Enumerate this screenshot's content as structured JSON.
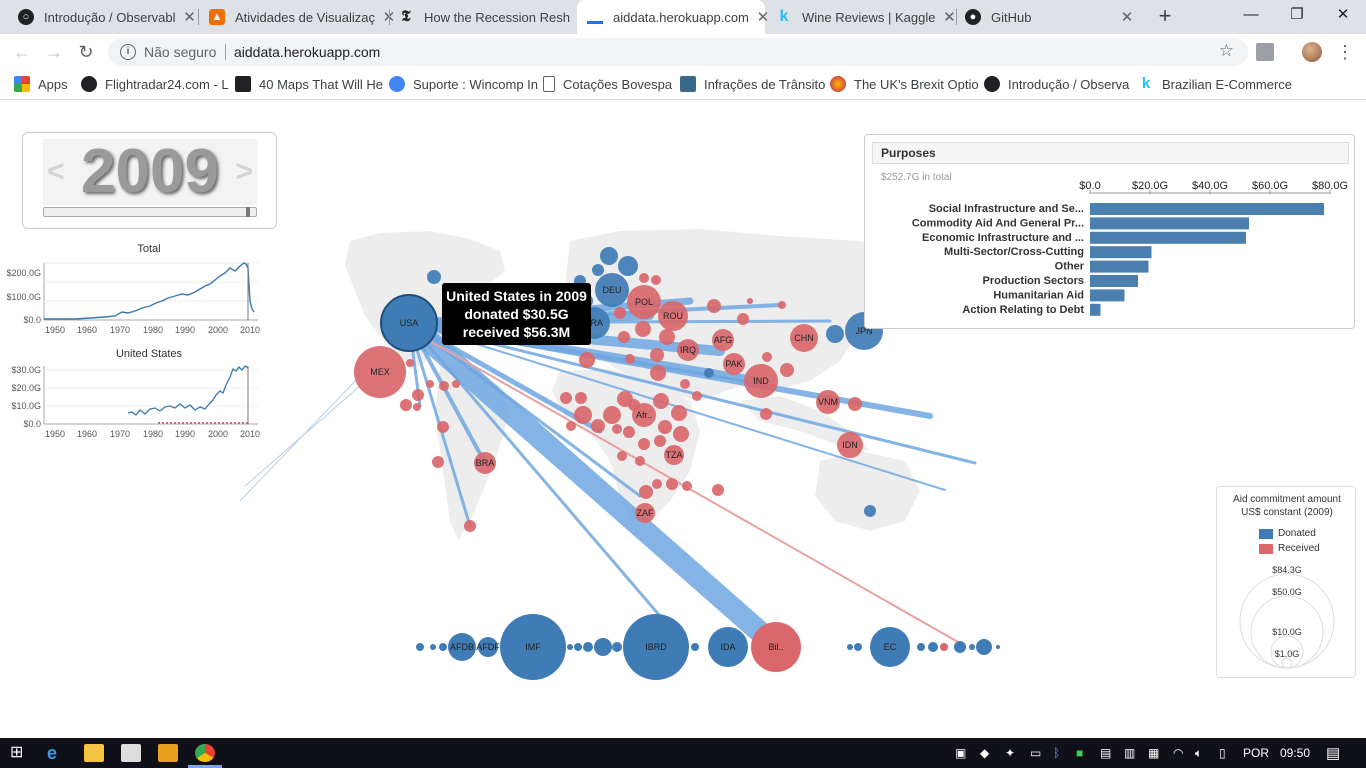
{
  "browser": {
    "tabs": [
      {
        "label": "Introdução / Observabl",
        "icon_color": "#202124",
        "active": false
      },
      {
        "label": "Atividades de Visualizaç",
        "icon_color": "#e8710a",
        "active": false
      },
      {
        "label": "How the Recession Resh",
        "icon_color": "#202124",
        "active": false
      },
      {
        "label": "aiddata.herokuapp.com",
        "icon_color": "#1a73e8",
        "active": true
      },
      {
        "label": "Wine Reviews | Kaggle",
        "icon_color": "#20beff",
        "active": false
      },
      {
        "label": "GitHub",
        "icon_color": "#202124",
        "active": false
      }
    ],
    "security_label": "Não seguro",
    "url": "aiddata.herokuapp.com",
    "bookmarks": [
      {
        "label": "Apps",
        "color": "#e94235"
      },
      {
        "label": "Flightradar24.com - L",
        "color": "#202124"
      },
      {
        "label": "40 Maps That Will He",
        "color": "#202124"
      },
      {
        "label": "Suporte : Wincomp In",
        "color": "#4285f4"
      },
      {
        "label": "Cotações Bovespa",
        "color": "#5f6368"
      },
      {
        "label": "Infrações de Trânsito",
        "color": "#3a6a8a"
      },
      {
        "label": "The UK's Brexit Optio",
        "color": "#c2185b"
      },
      {
        "label": "Introdução / Observa",
        "color": "#202124"
      },
      {
        "label": "Brazilian E-Commerce",
        "color": "#20beff"
      }
    ]
  },
  "year_selector": {
    "year": "2009",
    "prev": "<",
    "next": ">"
  },
  "charts": {
    "total": {
      "title": "Total",
      "y_ticks": [
        "$200.0G",
        "$100.0G",
        "$0.0"
      ],
      "x_ticks": [
        "1950",
        "1960",
        "1970",
        "1980",
        "1990",
        "2000",
        "2010"
      ]
    },
    "country": {
      "title": "United States",
      "y_ticks": [
        "$30.0G",
        "$20.0G",
        "$10.0G",
        "$0.0"
      ],
      "x_ticks": [
        "1950",
        "1960",
        "1970",
        "1980",
        "1990",
        "2000",
        "2010"
      ]
    }
  },
  "purposes": {
    "title": "Purposes",
    "total": "$252.7G in total",
    "chart_data": {
      "type": "bar",
      "orientation": "horizontal",
      "categories": [
        "Social Infrastructure and Se...",
        "Commodity Aid And General Pr...",
        "Economic Infrastructure and ...",
        "Multi-Sector/Cross-Cutting",
        "Other",
        "Production Sectors",
        "Humanitarian Aid",
        "Action Relating to Debt"
      ],
      "values": [
        78,
        53,
        52,
        20.5,
        19.5,
        16,
        11.5,
        3.5
      ],
      "unit": "billion US$",
      "x_ticks": [
        "$0.0",
        "$20.0G",
        "$40.0G",
        "$60.0G",
        "$80.0G"
      ],
      "xlim": [
        0,
        80
      ],
      "color": "#4a7fb0"
    }
  },
  "tooltip": {
    "title": "United States in 2009",
    "donated": "donated $30.5G",
    "received": "received $56.3M"
  },
  "map": {
    "donor_color": "#3f7cb5",
    "recipient_color": "#d9676b",
    "flow_color": "#6fa6e0",
    "country_labels": [
      "USA",
      "MEX",
      "DEU",
      "FRA",
      "POL",
      "ROU",
      "IRQ",
      "AFG",
      "PAK",
      "IND",
      "CHN",
      "JPN",
      "VNM",
      "IDN",
      "Afr..",
      "TZA",
      "ZAF",
      "BRA"
    ],
    "institution_labels": [
      "AFDB",
      "AFDF",
      "IMF",
      "IBRD",
      "IDA",
      "Bil..",
      "EC"
    ]
  },
  "legend": {
    "title_line1": "Aid commitment amount",
    "title_line2": "US$ constant (2009)",
    "donated": "Donated",
    "received": "Received",
    "donated_color": "#3f7cb5",
    "received_color": "#d9676b",
    "sizes": [
      "$84.3G",
      "$50.0G",
      "$10.0G",
      "$1.0G"
    ]
  },
  "taskbar": {
    "language": "POR",
    "time": "09:50"
  }
}
